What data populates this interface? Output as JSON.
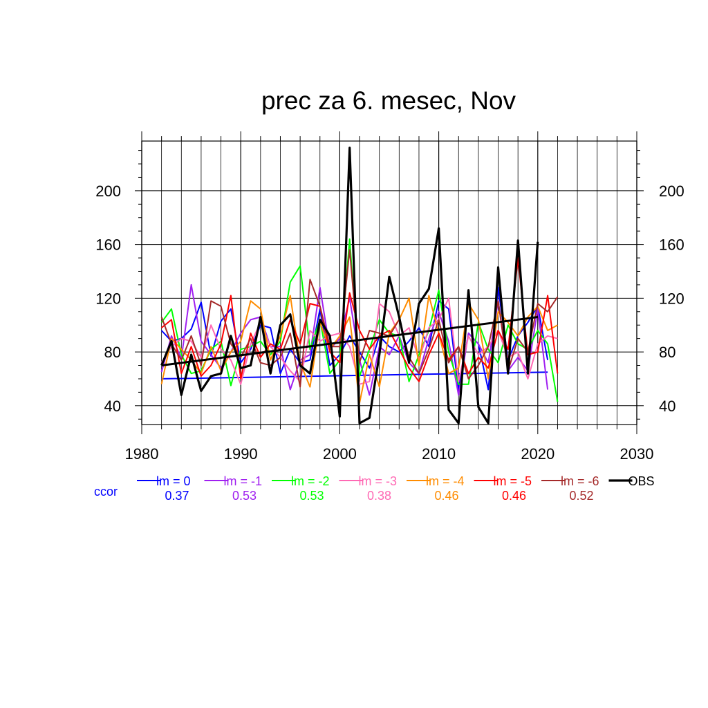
{
  "chart_data": {
    "type": "line",
    "title": "prec za 6. mesec, Nov",
    "xlabel": "",
    "ylabel": "",
    "xlim": [
      1980,
      2030
    ],
    "ylim": [
      26,
      237
    ],
    "x_ticks": [
      1980,
      1990,
      2000,
      2010,
      2020,
      2030
    ],
    "y_ticks": [
      40,
      80,
      120,
      160,
      200
    ],
    "grid": true,
    "legend": {
      "placement": "bottom",
      "ccor_label": "ccor"
    },
    "series": [
      {
        "name": "lm = 0",
        "color": "#0000ff",
        "ccor": "0.37",
        "x": [
          1982,
          1983,
          1984,
          1985,
          1986,
          1987,
          1988,
          1989,
          1990,
          1991,
          1992,
          1993,
          1994,
          1995,
          1996,
          1997,
          1998,
          1999,
          2000,
          2001,
          2002,
          2003,
          2004,
          2005,
          2006,
          2007,
          2008,
          2009,
          2010,
          2011,
          2012,
          2013,
          2014,
          2015,
          2016,
          2017,
          2018,
          2019,
          2020,
          2021
        ],
        "values": [
          96,
          88,
          90,
          97,
          117,
          77,
          103,
          112,
          72,
          82,
          100,
          98,
          64,
          82,
          72,
          74,
          112,
          70,
          78,
          92,
          80,
          68,
          92,
          84,
          80,
          88,
          98,
          84,
          118,
          112,
          52,
          94,
          86,
          52,
          128,
          74,
          92,
          102,
          114,
          74
        ],
        "trend": [
          60,
          65
        ]
      },
      {
        "name": "lm = -1",
        "color": "#a020f0",
        "ccor": "0.53",
        "x": [
          1982,
          1983,
          1984,
          1985,
          1986,
          1987,
          1988,
          1989,
          1990,
          1991,
          1992,
          1993,
          1994,
          1995,
          1996,
          1997,
          1998,
          1999,
          2000,
          2001,
          2002,
          2003,
          2004,
          2005,
          2006,
          2007,
          2008,
          2009,
          2010,
          2011,
          2012,
          2013,
          2014,
          2015,
          2016,
          2017,
          2018,
          2019,
          2020,
          2021
        ],
        "values": [
          65,
          92,
          75,
          130,
          88,
          78,
          68,
          80,
          94,
          104,
          106,
          84,
          84,
          52,
          74,
          78,
          128,
          82,
          90,
          120,
          74,
          48,
          84,
          78,
          92,
          72,
          64,
          90,
          110,
          88,
          48,
          94,
          86,
          72,
          118,
          66,
          76,
          66,
          112,
          52
        ]
      },
      {
        "name": "lm = -2",
        "color": "#00ff00",
        "ccor": "0.53",
        "x": [
          1982,
          1983,
          1984,
          1985,
          1986,
          1987,
          1988,
          1989,
          1990,
          1991,
          1992,
          1993,
          1994,
          1995,
          1996,
          1997,
          1998,
          1999,
          2000,
          2001,
          2002,
          2003,
          2004,
          2005,
          2006,
          2007,
          2008,
          2009,
          2010,
          2011,
          2012,
          2013,
          2014,
          2015,
          2016,
          2017,
          2018,
          2019,
          2020,
          2021,
          2022
        ],
        "values": [
          102,
          112,
          78,
          64,
          66,
          82,
          88,
          55,
          82,
          84,
          88,
          78,
          88,
          132,
          144,
          82,
          104,
          64,
          74,
          164,
          62,
          82,
          104,
          94,
          92,
          58,
          78,
          96,
          126,
          80,
          56,
          56,
          102,
          82,
          72,
          100,
          86,
          82,
          96,
          86,
          43
        ]
      },
      {
        "name": "lm = -3",
        "color": "#ff69b4",
        "ccor": "0.38",
        "x": [
          1982,
          1983,
          1984,
          1985,
          1986,
          1987,
          1988,
          1989,
          1990,
          1991,
          1992,
          1993,
          1994,
          1995,
          1996,
          1997,
          1998,
          1999,
          2000,
          2001,
          2002,
          2003,
          2004,
          2005,
          2006,
          2007,
          2008,
          2009,
          2010,
          2011,
          2012,
          2013,
          2014,
          2015,
          2016,
          2017,
          2018,
          2019,
          2020,
          2021,
          2022
        ],
        "values": [
          72,
          84,
          90,
          88,
          76,
          100,
          82,
          74,
          56,
          86,
          102,
          84,
          76,
          66,
          58,
          96,
          88,
          92,
          94,
          84,
          56,
          58,
          116,
          110,
          92,
          98,
          74,
          98,
          104,
          120,
          58,
          92,
          78,
          84,
          96,
          76,
          80,
          60,
          86,
          92,
          90
        ]
      },
      {
        "name": "lm = -4",
        "color": "#ff8c00",
        "ccor": "0.46",
        "x": [
          1982,
          1983,
          1984,
          1985,
          1986,
          1987,
          1988,
          1989,
          1990,
          1991,
          1992,
          1993,
          1994,
          1995,
          1996,
          1997,
          1998,
          1999,
          2000,
          2001,
          2002,
          2003,
          2004,
          2005,
          2006,
          2007,
          2008,
          2009,
          2010,
          2011,
          2012,
          2013,
          2014,
          2015,
          2016,
          2017,
          2018,
          2019,
          2020,
          2021,
          2022
        ],
        "values": [
          56,
          90,
          82,
          74,
          64,
          84,
          66,
          80,
          88,
          118,
          112,
          74,
          92,
          122,
          72,
          54,
          102,
          82,
          92,
          106,
          42,
          78,
          54,
          94,
          104,
          120,
          70,
          122,
          94,
          64,
          68,
          116,
          104,
          60,
          110,
          102,
          92,
          106,
          114,
          96,
          100
        ]
      },
      {
        "name": "lm = -5",
        "color": "#ff0000",
        "ccor": "0.46",
        "x": [
          1982,
          1983,
          1984,
          1985,
          1986,
          1987,
          1988,
          1989,
          1990,
          1991,
          1992,
          1993,
          1994,
          1995,
          1996,
          1997,
          1998,
          1999,
          2000,
          2001,
          2002,
          2003,
          2004,
          2005,
          2006,
          2007,
          2008,
          2009,
          2010,
          2011,
          2012,
          2013,
          2014,
          2015,
          2016,
          2017,
          2018,
          2019,
          2020,
          2021,
          2022
        ],
        "values": [
          98,
          104,
          64,
          84,
          62,
          70,
          86,
          122,
          60,
          94,
          76,
          86,
          82,
          104,
          86,
          116,
          114,
          80,
          72,
          124,
          96,
          82,
          92,
          96,
          82,
          68,
          58,
          78,
          94,
          74,
          84,
          64,
          76,
          68,
          96,
          82,
          150,
          78,
          80,
          122,
          64
        ]
      },
      {
        "name": "lm = -6",
        "color": "#a52a2a",
        "ccor": "0.52",
        "x": [
          1982,
          1983,
          1984,
          1985,
          1986,
          1987,
          1988,
          1989,
          1990,
          1991,
          1992,
          1993,
          1994,
          1995,
          1996,
          1997,
          1998,
          1999,
          2000,
          2001,
          2002,
          2003,
          2004,
          2005,
          2006,
          2007,
          2008,
          2009,
          2010,
          2011,
          2012,
          2013,
          2014,
          2015,
          2016,
          2017,
          2018,
          2019,
          2020,
          2021,
          2022
        ],
        "values": [
          106,
          86,
          74,
          92,
          70,
          118,
          114,
          86,
          76,
          90,
          72,
          70,
          76,
          94,
          54,
          134,
          114,
          84,
          84,
          156,
          72,
          96,
          94,
          92,
          104,
          76,
          64,
          82,
          104,
          72,
          84,
          60,
          70,
          84,
          118,
          66,
          90,
          80,
          116,
          110,
          121
        ]
      },
      {
        "name": "OBS",
        "color": "#000000",
        "ccor": "",
        "x": [
          1982,
          1983,
          1984,
          1985,
          1986,
          1987,
          1988,
          1989,
          1990,
          1991,
          1992,
          1993,
          1994,
          1995,
          1996,
          1997,
          1998,
          1999,
          2000,
          2001,
          2002,
          2003,
          2004,
          2005,
          2006,
          2007,
          2008,
          2009,
          2010,
          2011,
          2012,
          2013,
          2014,
          2015,
          2016,
          2017,
          2018,
          2019,
          2020
        ],
        "values": [
          70,
          88,
          48,
          78,
          51,
          62,
          64,
          92,
          68,
          70,
          106,
          64,
          100,
          108,
          70,
          64,
          104,
          92,
          32,
          232,
          27,
          31,
          78,
          136,
          106,
          72,
          116,
          127,
          172,
          37,
          27,
          126,
          39,
          27,
          143,
          64,
          163,
          64,
          162
        ],
        "trend": [
          70,
          106
        ]
      }
    ]
  }
}
